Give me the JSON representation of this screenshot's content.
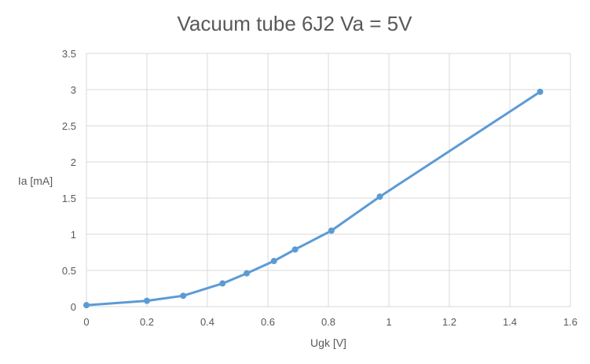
{
  "chart_data": {
    "type": "scatter",
    "title": "Vacuum tube 6J2 Va = 5V",
    "xlabel": "Ugk [V]",
    "ylabel": "Ia [mA]",
    "xlim": [
      0,
      1.6
    ],
    "ylim": [
      0,
      3.5
    ],
    "x_ticks": [
      "0",
      "0.2",
      "0.4",
      "0.6",
      "0.8",
      "1",
      "1.2",
      "1.4",
      "1.6"
    ],
    "y_ticks": [
      "0",
      "0.5",
      "1",
      "1.5",
      "2",
      "2.5",
      "3",
      "3.5"
    ],
    "grid": true,
    "legend": "none",
    "series": [
      {
        "color": "#5b9bd5",
        "markers": true,
        "lines": true,
        "x": [
          0,
          0.2,
          0.32,
          0.45,
          0.53,
          0.62,
          0.69,
          0.81,
          0.97,
          1.5
        ],
        "y": [
          0.02,
          0.08,
          0.15,
          0.32,
          0.46,
          0.63,
          0.79,
          1.05,
          1.52,
          2.97
        ]
      }
    ]
  }
}
